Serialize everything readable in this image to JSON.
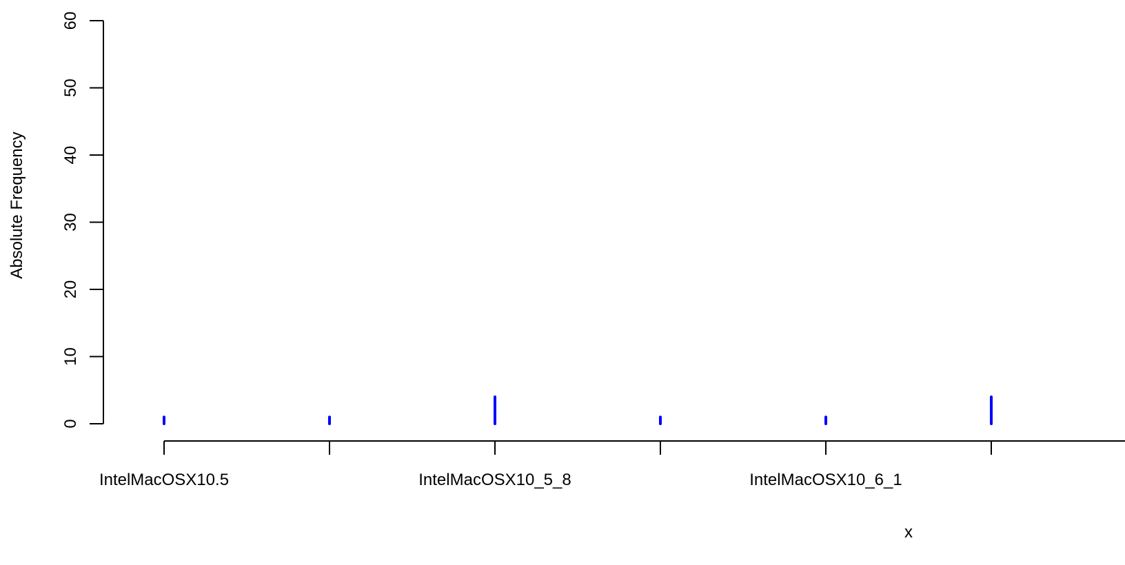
{
  "chart_data": {
    "type": "bar",
    "title": "",
    "xlabel": "x",
    "ylabel": "Absolute Frequency",
    "categories": [
      "IntelMacOSX10.5",
      "",
      "IntelMacOSX10_5_8",
      "",
      "IntelMacOSX10_6_1",
      ""
    ],
    "values": [
      1,
      1,
      4,
      1,
      1,
      4
    ],
    "tick_labels_shown": [
      "IntelMacOSX10.5",
      "IntelMacOSX10_5_8",
      "IntelMacOSX10_6_1"
    ],
    "ylim": [
      0,
      60
    ],
    "y_ticks": [
      "0",
      "10",
      "20",
      "30",
      "40",
      "50",
      "60"
    ],
    "bar_color": "#0000ff",
    "grid": false,
    "legend": "none"
  }
}
